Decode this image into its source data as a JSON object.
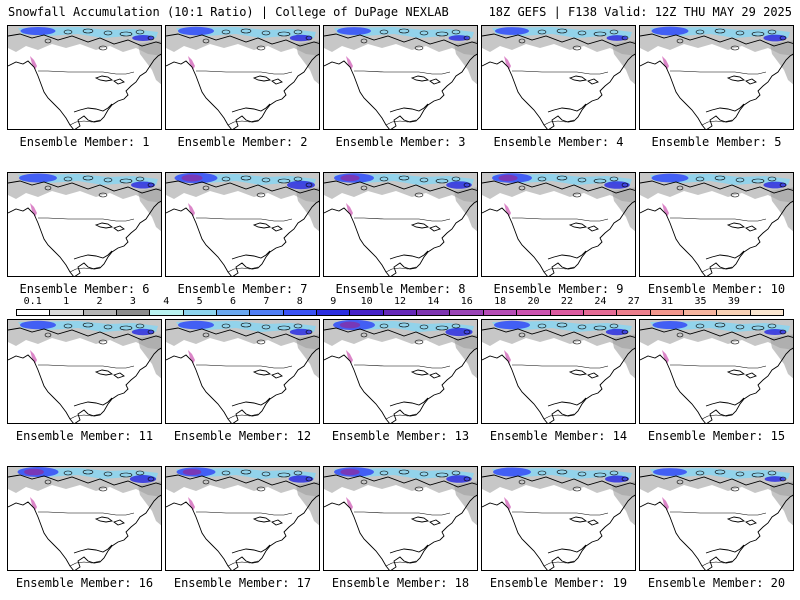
{
  "header": {
    "left": "Snowfall Accumulation (10:1 Ratio) | College of DuPage NEXLAB",
    "right": "18Z GEFS | F138 Valid: 12Z THU MAY 29 2025"
  },
  "members": [
    {
      "label": "Ensemble Member: 1",
      "intensity": 0.35
    },
    {
      "label": "Ensemble Member: 2",
      "intensity": 0.4
    },
    {
      "label": "Ensemble Member: 3",
      "intensity": 0.3
    },
    {
      "label": "Ensemble Member: 4",
      "intensity": 0.3
    },
    {
      "label": "Ensemble Member: 5",
      "intensity": 0.45
    },
    {
      "label": "Ensemble Member: 6",
      "intensity": 0.5
    },
    {
      "label": "Ensemble Member: 7",
      "intensity": 0.75
    },
    {
      "label": "Ensemble Member: 8",
      "intensity": 0.6
    },
    {
      "label": "Ensemble Member: 9",
      "intensity": 0.6
    },
    {
      "label": "Ensemble Member: 10",
      "intensity": 0.45
    },
    {
      "label": "Ensemble Member: 11",
      "intensity": 0.4
    },
    {
      "label": "Ensemble Member: 12",
      "intensity": 0.4
    },
    {
      "label": "Ensemble Member: 13",
      "intensity": 0.7
    },
    {
      "label": "Ensemble Member: 14",
      "intensity": 0.4
    },
    {
      "label": "Ensemble Member: 15",
      "intensity": 0.35
    },
    {
      "label": "Ensemble Member: 16",
      "intensity": 0.65
    },
    {
      "label": "Ensemble Member: 17",
      "intensity": 0.55
    },
    {
      "label": "Ensemble Member: 18",
      "intensity": 0.6
    },
    {
      "label": "Ensemble Member: 19",
      "intensity": 0.5
    },
    {
      "label": "Ensemble Member: 20",
      "intensity": 0.3
    }
  ],
  "colorbar": {
    "ticks": [
      "0.1",
      "1",
      "2",
      "3",
      "4",
      "5",
      "6",
      "7",
      "8",
      "9",
      "10",
      "12",
      "14",
      "16",
      "18",
      "20",
      "22",
      "24",
      "27",
      "31",
      "35",
      "39"
    ],
    "colors": [
      "#ffffff",
      "#dcdcdc",
      "#b4b4b4",
      "#8c8c8c",
      "#b9f2f0",
      "#8cd4ee",
      "#6aa8f0",
      "#4f7ef5",
      "#3a52f5",
      "#2c2ee0",
      "#4622c8",
      "#6628b8",
      "#7e34b0",
      "#9a44b6",
      "#b64cb6",
      "#cc52b0",
      "#dc5aa0",
      "#e46a94",
      "#ec7e8c",
      "#f2968c",
      "#f6b49e",
      "#f8d0b4",
      "#fbe6d0"
    ]
  }
}
